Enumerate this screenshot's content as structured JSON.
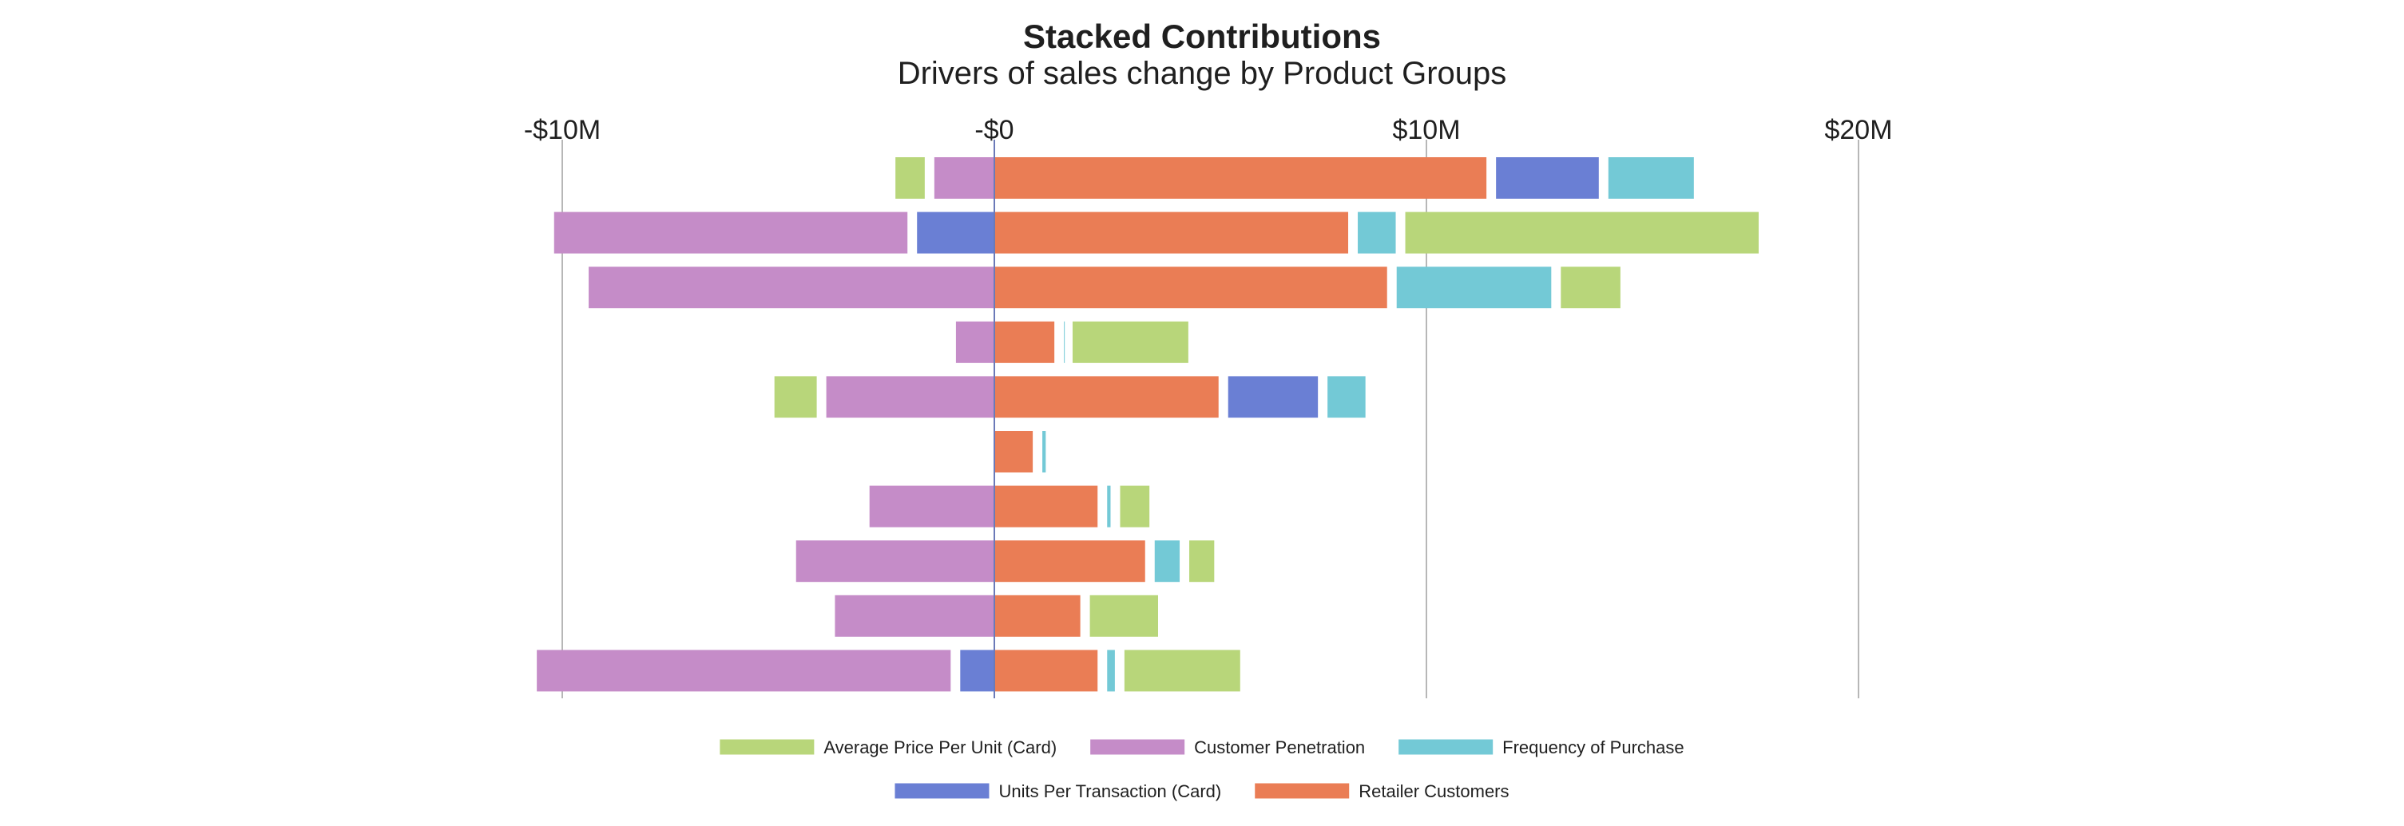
{
  "chart_data": {
    "type": "bar",
    "orientation": "horizontal",
    "stacked": true,
    "title": "Stacked Contributions",
    "subtitle": "Drivers of sales change by Product Groups",
    "xlabel": "",
    "ylabel": "",
    "xlim": [
      -10000000,
      20000000
    ],
    "x_ticks": [
      {
        "value": -10000000,
        "label": "-$10M"
      },
      {
        "value": 0,
        "label": "-$0"
      },
      {
        "value": 10000000,
        "label": "$10M"
      },
      {
        "value": 20000000,
        "label": "$20M"
      }
    ],
    "grid": "vertical",
    "legend_position": "bottom",
    "categories": [
      "",
      "",
      "",
      "",
      "",
      "",
      "",
      "",
      "",
      ""
    ],
    "series": [
      {
        "name": "Average Price Per Unit (Card)",
        "color": "#b8d67a",
        "values": [
          -0.9,
          8.4,
          1.6,
          2.9,
          -1.2,
          0,
          0.9,
          0.8,
          1.8,
          2.9
        ]
      },
      {
        "name": "Customer Penetration",
        "color": "#c58cc8",
        "values": [
          -1.5,
          -8.4,
          -9.5,
          -1.0,
          -4.0,
          0,
          -3.0,
          -4.7,
          -3.8,
          -9.8
        ]
      },
      {
        "name": "Frequency of Purchase",
        "color": "#73c9d6",
        "values": [
          2.2,
          1.1,
          3.8,
          0.2,
          1.1,
          0.3,
          0.3,
          0.8,
          0,
          0.4
        ]
      },
      {
        "name": "Units Per Transaction (Card)",
        "color": "#6a7fd4",
        "values": [
          2.6,
          -1.9,
          0,
          0,
          2.3,
          0,
          0,
          0,
          0,
          -0.9
        ]
      },
      {
        "name": "Retailer Customers",
        "color": "#ea7d55",
        "values": [
          11.5,
          8.3,
          9.2,
          1.5,
          5.3,
          1.0,
          2.5,
          3.6,
          2.1,
          2.5
        ]
      }
    ],
    "value_unit": "$M"
  }
}
